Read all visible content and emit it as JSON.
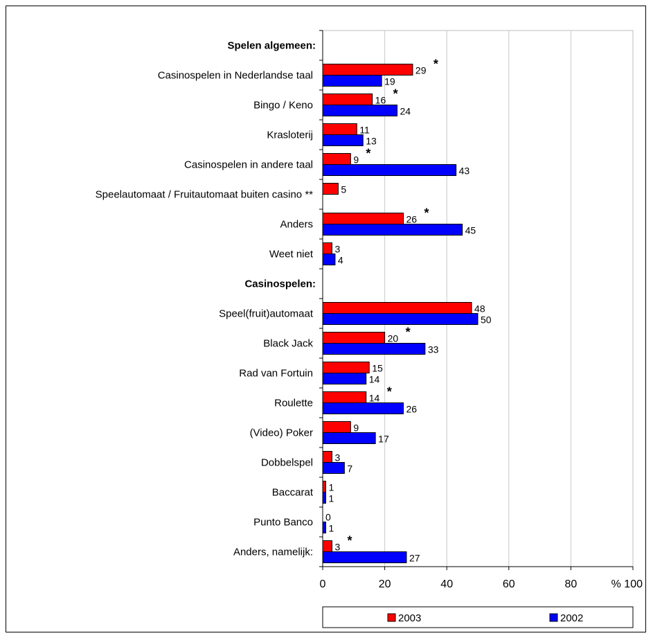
{
  "chart_data": {
    "type": "bar",
    "orientation": "horizontal",
    "rows": [
      {
        "kind": "header",
        "label": "Spelen algemeen:"
      },
      {
        "kind": "category",
        "label": "Casinospelen in Nederlandse taal",
        "v2003": 29,
        "v2002": 19,
        "mark": "*"
      },
      {
        "kind": "category",
        "label": "Bingo / Keno",
        "v2003": 16,
        "v2002": 24,
        "mark": "*"
      },
      {
        "kind": "category",
        "label": "Krasloterij",
        "v2003": 11,
        "v2002": 13,
        "mark": ""
      },
      {
        "kind": "category",
        "label": "Casinospelen in andere taal",
        "v2003": 9,
        "v2002": 43,
        "mark": "*"
      },
      {
        "kind": "category",
        "label": "Speelautomaat / Fruitautomaat buiten casino **",
        "v2003": 5,
        "v2002": null,
        "mark": ""
      },
      {
        "kind": "category",
        "label": "Anders",
        "v2003": 26,
        "v2002": 45,
        "mark": "*"
      },
      {
        "kind": "category",
        "label": "Weet niet",
        "v2003": 3,
        "v2002": 4,
        "mark": ""
      },
      {
        "kind": "header",
        "label": "Casinospelen:"
      },
      {
        "kind": "category",
        "label": "Speel(fruit)automaat",
        "v2003": 48,
        "v2002": 50,
        "mark": ""
      },
      {
        "kind": "category",
        "label": "Black Jack",
        "v2003": 20,
        "v2002": 33,
        "mark": "*"
      },
      {
        "kind": "category",
        "label": "Rad van Fortuin",
        "v2003": 15,
        "v2002": 14,
        "mark": ""
      },
      {
        "kind": "category",
        "label": "Roulette",
        "v2003": 14,
        "v2002": 26,
        "mark": "*"
      },
      {
        "kind": "category",
        "label": "(Video) Poker",
        "v2003": 9,
        "v2002": 17,
        "mark": ""
      },
      {
        "kind": "category",
        "label": "Dobbelspel",
        "v2003": 3,
        "v2002": 7,
        "mark": ""
      },
      {
        "kind": "category",
        "label": "Baccarat",
        "v2003": 1,
        "v2002": 1,
        "mark": ""
      },
      {
        "kind": "category",
        "label": "Punto Banco",
        "v2003": 0,
        "v2002": 1,
        "mark": ""
      },
      {
        "kind": "category",
        "label": "Anders, namelijk:",
        "v2003": 3,
        "v2002": 27,
        "mark": "*"
      }
    ],
    "series": [
      {
        "name": "2003",
        "key": "v2003",
        "color": "#ff0000"
      },
      {
        "name": "2002",
        "key": "v2002",
        "color": "#0000ff"
      }
    ],
    "xlim": [
      0,
      100
    ],
    "xticks": [
      "0",
      "20",
      "40",
      "60",
      "80",
      "% 100"
    ],
    "grid": true,
    "legend_position": "bottom"
  }
}
